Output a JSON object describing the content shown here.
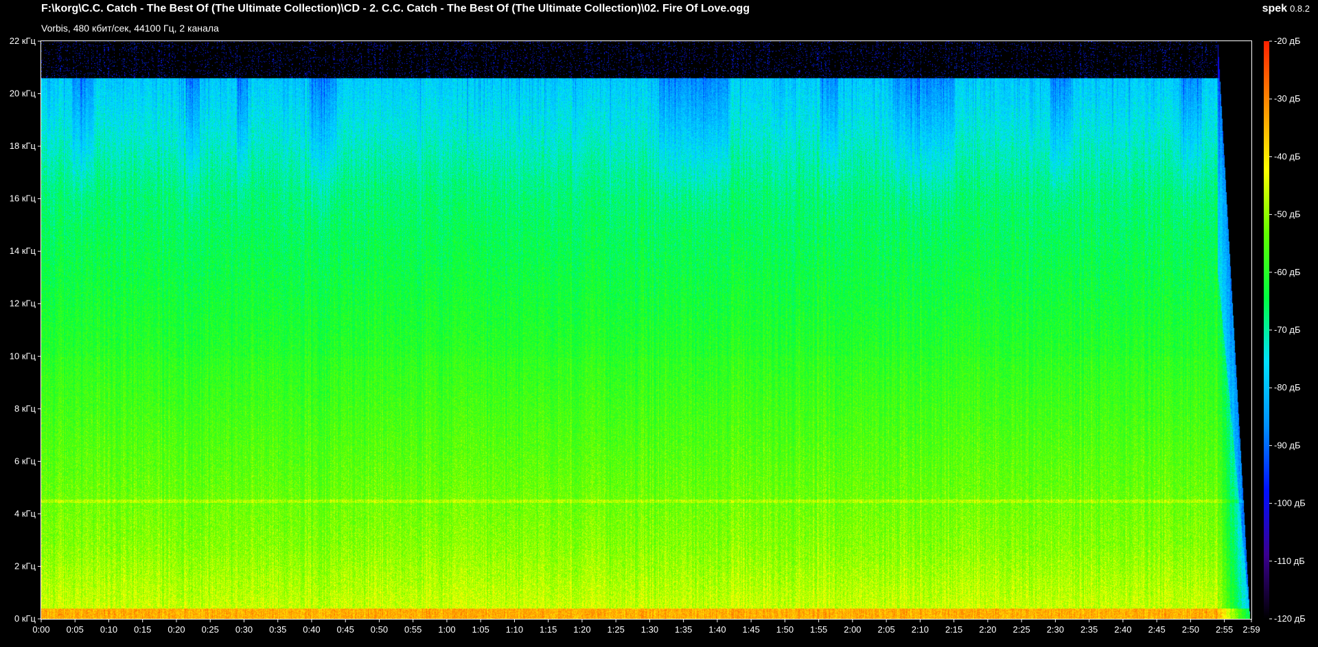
{
  "header": {
    "file_path": "F:\\korg\\C.C. Catch - The Best Of (The Ultimate Collection)\\CD - 2. C.C. Catch - The Best Of (The Ultimate Collection)\\02. Fire Of Love.ogg",
    "stream_info": "Vorbis, 480 кбит/сек, 44100 Гц, 2 канала"
  },
  "brand": {
    "name": "spek",
    "version": "0.8.2"
  },
  "spectrogram": {
    "frequency_axis": {
      "ticks": [
        "0 кГц",
        "2 кГц",
        "4 кГц",
        "6 кГц",
        "8 кГц",
        "10 кГц",
        "12 кГц",
        "14 кГц",
        "16 кГц",
        "18 кГц",
        "20 кГц",
        "22 кГц"
      ],
      "max_khz": 22
    },
    "time_axis": {
      "ticks": [
        "0:00",
        "0:05",
        "0:10",
        "0:15",
        "0:20",
        "0:25",
        "0:30",
        "0:35",
        "0:40",
        "0:45",
        "0:50",
        "0:55",
        "1:00",
        "1:05",
        "1:10",
        "1:15",
        "1:20",
        "1:25",
        "1:30",
        "1:35",
        "1:40",
        "1:45",
        "1:50",
        "1:55",
        "2:00",
        "2:05",
        "2:10",
        "2:15",
        "2:20",
        "2:25",
        "2:30",
        "2:35",
        "2:40",
        "2:45",
        "2:50",
        "2:55",
        "2:59"
      ],
      "duration_seconds": 179
    },
    "content": {
      "cutoff_khz": 20.6,
      "fadeout_start_seconds": 174
    }
  },
  "legend": {
    "ticks": [
      "-20 дБ",
      "-30 дБ",
      "-40 дБ",
      "-50 дБ",
      "-60 дБ",
      "-70 дБ",
      "-80 дБ",
      "-90 дБ",
      "-100 дБ",
      "-110 дБ",
      "-120 дБ"
    ],
    "range_db": [
      -120,
      -20
    ],
    "colors": [
      "#000000",
      "#3a0090",
      "#0010ff",
      "#0090ff",
      "#00e0ff",
      "#00ff40",
      "#60ff00",
      "#ffff00",
      "#ff9000",
      "#ff2000"
    ]
  }
}
